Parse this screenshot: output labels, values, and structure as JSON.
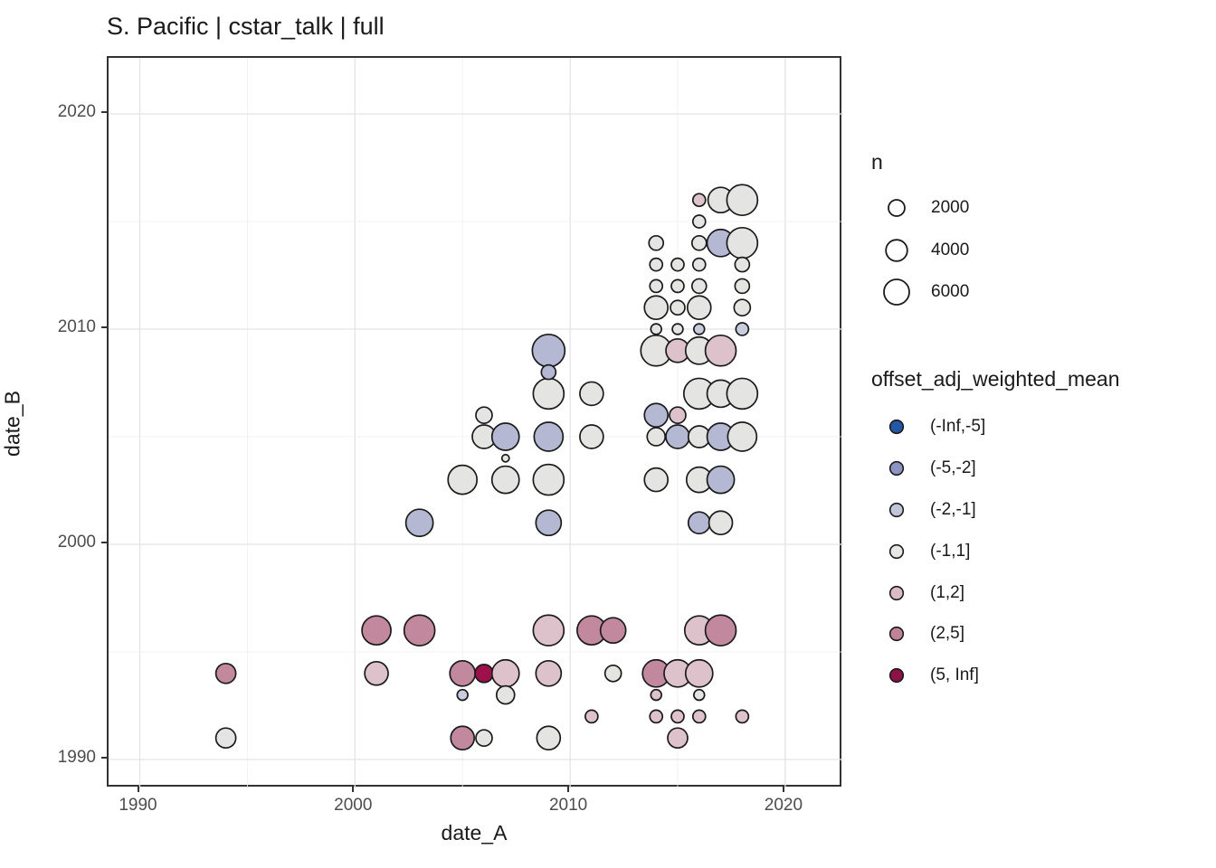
{
  "title": "S. Pacific | cstar_talk | full",
  "axes": {
    "x": {
      "label": "date_A",
      "major_ticks": [
        1990,
        2000,
        2010,
        2020
      ],
      "minor_ticks": [
        1995,
        2005,
        2015
      ],
      "range": [
        1988.6,
        2022.7
      ]
    },
    "y": {
      "label": "date_B",
      "major_ticks": [
        1990,
        2000,
        2010,
        2020
      ],
      "minor_ticks": [
        1995,
        2005,
        2015
      ],
      "range": [
        1988.7,
        2022.6
      ]
    }
  },
  "size_legend": {
    "title": "n",
    "entries": [
      {
        "label": "2000",
        "n": 2000
      },
      {
        "label": "4000",
        "n": 4000
      },
      {
        "label": "6000",
        "n": 6000
      }
    ]
  },
  "color_legend": {
    "title": "offset_adj_weighted_mean",
    "entries": [
      {
        "label": "(-Inf,-5]",
        "key_color": "#2457a4",
        "fill": "#2457a4"
      },
      {
        "label": "(-5,-2]",
        "key_color": "#8b94c3",
        "fill": "#b4b8d3"
      },
      {
        "label": "(-2,-1]",
        "key_color": "#c3c5da",
        "fill": "#c9cbde"
      },
      {
        "label": "(-1,1]",
        "key_color": "#e7e7e6",
        "fill": "#e4e4e3"
      },
      {
        "label": "(1,2]",
        "key_color": "#d9bcc7",
        "fill": "#ddc2cc"
      },
      {
        "label": "(2,5]",
        "key_color": "#bf8298",
        "fill": "#c2889d"
      },
      {
        "label": "(5, Inf]",
        "key_color": "#8e1148",
        "fill": "#9d1049"
      }
    ]
  },
  "chart_data": {
    "type": "scatter",
    "subtype": "bubble",
    "title": "S. Pacific | cstar_talk | full",
    "xlabel": "date_A",
    "ylabel": "date_B",
    "xlim": [
      1988.6,
      2022.7
    ],
    "ylim": [
      1988.7,
      2022.6
    ],
    "grid": "on",
    "legend_position": "right",
    "size_field": "n",
    "color_field": "offset_adj_weighted_mean",
    "point_fields": [
      "date_A",
      "date_B",
      "offset_bin",
      "n_approx"
    ],
    "points": [
      [
        1994,
        1991,
        "(-1,1]",
        3350
      ],
      [
        1994,
        1994,
        "(2,5]",
        3350
      ],
      [
        2001,
        1994,
        "(1,2]",
        5000
      ],
      [
        2001,
        1996,
        "(2,5]",
        8200
      ],
      [
        2003,
        1996,
        "(2,5]",
        9400
      ],
      [
        2003,
        2001,
        "(-5,-2]",
        7100
      ],
      [
        2005,
        1991,
        "(2,5]",
        5000
      ],
      [
        2005,
        1993,
        "(-2,-1]",
        600
      ],
      [
        2005,
        1994,
        "(2,5]",
        6000
      ],
      [
        2005,
        2003,
        "(-1,1]",
        8200
      ],
      [
        2006,
        1991,
        "(-1,1]",
        2000
      ],
      [
        2006,
        1994,
        "(5, Inf]",
        2600
      ],
      [
        2006,
        2005,
        "(-1,1]",
        5000
      ],
      [
        2006,
        2006,
        "(-1,1]",
        2000
      ],
      [
        2007,
        1993,
        "(-1,1]",
        2600
      ],
      [
        2007,
        1994,
        "(1,2]",
        7100
      ],
      [
        2007,
        2003,
        "(-1,1]",
        7100
      ],
      [
        2007,
        2004,
        "(-1,1]",
        150
      ],
      [
        2007,
        2005,
        "(-5,-2]",
        7100
      ],
      [
        2009,
        1991,
        "(-1,1]",
        5000
      ],
      [
        2009,
        1994,
        "(1,2]",
        6000
      ],
      [
        2009,
        1996,
        "(1,2]",
        9400
      ],
      [
        2009,
        2001,
        "(-5,-2]",
        6000
      ],
      [
        2009,
        2003,
        "(-1,1]",
        9400
      ],
      [
        2009,
        2005,
        "(-5,-2]",
        8200
      ],
      [
        2009,
        2007,
        "(-1,1]",
        9400
      ],
      [
        2009,
        2008,
        "(-5,-2]",
        1450
      ],
      [
        2009,
        2009,
        "(-5,-2]",
        10750
      ],
      [
        2011,
        1992,
        "(1,2]",
        1000
      ],
      [
        2011,
        1996,
        "(2,5]",
        8200
      ],
      [
        2011,
        2005,
        "(-1,1]",
        5000
      ],
      [
        2011,
        2007,
        "(-1,1]",
        5000
      ],
      [
        2012,
        1994,
        "(-1,1]",
        2000
      ],
      [
        2012,
        1996,
        "(2,5]",
        6000
      ],
      [
        2014,
        1992,
        "(1,2]",
        1000
      ],
      [
        2014,
        1993,
        "(1,2]",
        600
      ],
      [
        2014,
        1994,
        "(2,5]",
        7100
      ],
      [
        2014,
        2003,
        "(-1,1]",
        5000
      ],
      [
        2014,
        2005,
        "(-1,1]",
        2600
      ],
      [
        2014,
        2006,
        "(-5,-2]",
        5000
      ],
      [
        2014,
        2009,
        "(-1,1]",
        9400
      ],
      [
        2014,
        2010,
        "(-1,1]",
        600
      ],
      [
        2014,
        2011,
        "(-1,1]",
        5000
      ],
      [
        2014,
        2012,
        "(-1,1]",
        1000
      ],
      [
        2014,
        2013,
        "(-1,1]",
        1000
      ],
      [
        2014,
        2014,
        "(-1,1]",
        1450
      ],
      [
        2015,
        1991,
        "(1,2]",
        3350
      ],
      [
        2015,
        1992,
        "(1,2]",
        1000
      ],
      [
        2015,
        1994,
        "(1,2]",
        7100
      ],
      [
        2015,
        2005,
        "(-5,-2]",
        5000
      ],
      [
        2015,
        2006,
        "(1,2]",
        2000
      ],
      [
        2015,
        2009,
        "(1,2]",
        5000
      ],
      [
        2015,
        2010,
        "(-1,1]",
        600
      ],
      [
        2015,
        2011,
        "(-1,1]",
        1450
      ],
      [
        2015,
        2012,
        "(-1,1]",
        1000
      ],
      [
        2015,
        2013,
        "(-1,1]",
        1000
      ],
      [
        2016,
        1992,
        "(1,2]",
        1000
      ],
      [
        2016,
        1993,
        "(-1,1]",
        600
      ],
      [
        2016,
        1994,
        "(1,2]",
        7100
      ],
      [
        2016,
        1996,
        "(1,2]",
        8200
      ],
      [
        2016,
        2001,
        "(-5,-2]",
        4150
      ],
      [
        2016,
        2003,
        "(-1,1]",
        6000
      ],
      [
        2016,
        2005,
        "(-1,1]",
        4150
      ],
      [
        2016,
        2007,
        "(-1,1]",
        9400
      ],
      [
        2016,
        2009,
        "(-1,1]",
        7100
      ],
      [
        2016,
        2010,
        "(-2,-1]",
        600
      ],
      [
        2016,
        2011,
        "(-1,1]",
        5000
      ],
      [
        2016,
        2012,
        "(-1,1]",
        1450
      ],
      [
        2016,
        2013,
        "(-1,1]",
        1000
      ],
      [
        2016,
        2014,
        "(-1,1]",
        1450
      ],
      [
        2016,
        2015,
        "(-1,1]",
        1000
      ],
      [
        2016,
        2016,
        "(1,2]",
        1000
      ],
      [
        2017,
        1996,
        "(2,5]",
        9400
      ],
      [
        2017,
        2001,
        "(-1,1]",
        5000
      ],
      [
        2017,
        2003,
        "(-5,-2]",
        7100
      ],
      [
        2017,
        2005,
        "(-5,-2]",
        7100
      ],
      [
        2017,
        2007,
        "(-1,1]",
        7100
      ],
      [
        2017,
        2009,
        "(1,2]",
        9400
      ],
      [
        2017,
        2014,
        "(-5,-2]",
        7100
      ],
      [
        2017,
        2016,
        "(-1,1]",
        6000
      ],
      [
        2018,
        1992,
        "(1,2]",
        1000
      ],
      [
        2018,
        2005,
        "(-1,1]",
        8200
      ],
      [
        2018,
        2007,
        "(-1,1]",
        9400
      ],
      [
        2018,
        2010,
        "(-2,-1]",
        1000
      ],
      [
        2018,
        2011,
        "(-1,1]",
        2000
      ],
      [
        2018,
        2012,
        "(-1,1]",
        1450
      ],
      [
        2018,
        2013,
        "(-1,1]",
        1450
      ],
      [
        2018,
        2014,
        "(-1,1]",
        9400
      ],
      [
        2018,
        2016,
        "(-1,1]",
        9400
      ]
    ],
    "grid_colors": {
      "major": "#e4e4e4",
      "minor": "#efefef"
    },
    "point_stroke": "#1b1b1b"
  }
}
